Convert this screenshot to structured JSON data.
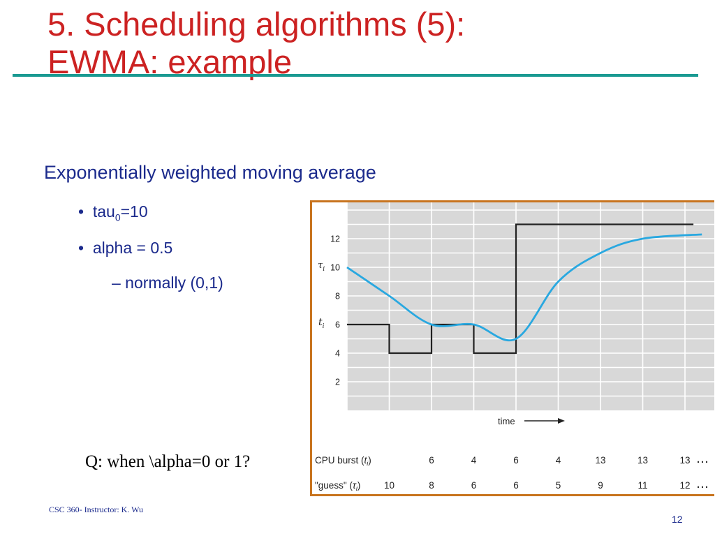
{
  "slide": {
    "title_line1": "5. Scheduling algorithms (5):",
    "title_line2": "EWMA: example",
    "lead": "Exponentially weighted moving average",
    "bullet1_prefix": "tau",
    "bullet1_sub": "0",
    "bullet1_suffix": "=10",
    "bullet2": "alpha = 0.5",
    "sub_bullet": "– normally (0,1)",
    "question": "Q: when \\alpha=0 or 1?",
    "footer": "CSC 360- Instructor: K. Wu",
    "page_number": "12",
    "colors": {
      "title": "#cc2222",
      "rule": "#1a9a92",
      "body_text": "#1b2a8c",
      "figure_border": "#c8741e",
      "plot_bg": "#d8d8d8",
      "burst_line": "#222222",
      "guess_line": "#29a8e0"
    }
  },
  "chart_data": {
    "type": "line",
    "ylim": [
      0,
      14
    ],
    "yticks": [
      2,
      4,
      6,
      8,
      10,
      12
    ],
    "xlabel": "time",
    "label_tau": "τ",
    "label_tau_sub": "i",
    "label_t": "t",
    "label_t_sub": "i",
    "series": [
      {
        "name": "CPU burst (ti)",
        "step_values": [
          6,
          4,
          6,
          4,
          13,
          13,
          13,
          13
        ]
      },
      {
        "name": "\"guess\" (τi)",
        "values": [
          10,
          8,
          6,
          6,
          5,
          9,
          11,
          12
        ]
      }
    ],
    "table": {
      "row1_label": "CPU burst (",
      "row1_var": "t",
      "row1_sub": "i",
      "row1_end": ")",
      "row1_values": [
        "6",
        "4",
        "6",
        "4",
        "13",
        "13",
        "13"
      ],
      "row2_label": "\"guess\" (",
      "row2_var": "τ",
      "row2_sub": "i",
      "row2_end": ")",
      "row2_values": [
        "10",
        "8",
        "6",
        "6",
        "5",
        "9",
        "11",
        "12"
      ],
      "ellipsis": "…"
    }
  }
}
